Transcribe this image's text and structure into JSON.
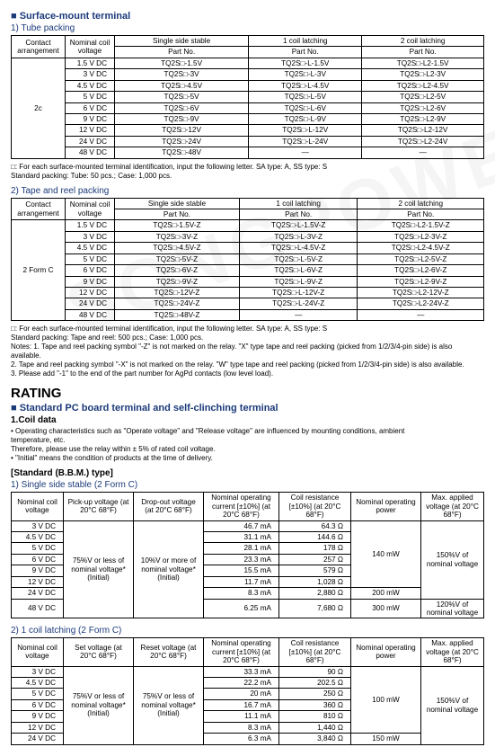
{
  "section1": {
    "title": "Surface-mount terminal",
    "sub1": "1) Tube packing",
    "headers": {
      "contact": "Contact\narrangement",
      "nominal": "Nominal coil\nvoltage",
      "single": "Single side stable",
      "c1": "1 coil latching",
      "c2": "2 coil latching",
      "partno": "Part No."
    },
    "contact": "2c",
    "rows": [
      {
        "v": "1.5 V DC",
        "a": "TQ2S□-1.5V",
        "b": "TQ2S□-L-1.5V",
        "c": "TQ2S□-L2-1.5V"
      },
      {
        "v": "3   V DC",
        "a": "TQ2S□-3V",
        "b": "TQ2S□-L-3V",
        "c": "TQ2S□-L2-3V"
      },
      {
        "v": "4.5 V DC",
        "a": "TQ2S□-4.5V",
        "b": "TQ2S□-L-4.5V",
        "c": "TQ2S□-L2-4.5V"
      },
      {
        "v": "5   V DC",
        "a": "TQ2S□-5V",
        "b": "TQ2S□-L-5V",
        "c": "TQ2S□-L2-5V"
      },
      {
        "v": "6   V DC",
        "a": "TQ2S□-6V",
        "b": "TQ2S□-L-6V",
        "c": "TQ2S□-L2-6V"
      },
      {
        "v": "9   V DC",
        "a": "TQ2S□-9V",
        "b": "TQ2S□-L-9V",
        "c": "TQ2S□-L2-9V"
      },
      {
        "v": "12  V DC",
        "a": "TQ2S□-12V",
        "b": "TQ2S□-L-12V",
        "c": "TQ2S□-L2-12V"
      },
      {
        "v": "24  V DC",
        "a": "TQ2S□-24V",
        "b": "TQ2S□-L-24V",
        "c": "TQ2S□-L2-24V"
      },
      {
        "v": "48  V DC",
        "a": "TQ2S□-48V",
        "b": "—",
        "c": "—"
      }
    ],
    "note": "□: For each surface-mounted terminal identification, input the following letter. SA type: A, SS type: S\nStandard packing: Tube: 50 pcs.; Case: 1,000 pcs."
  },
  "section2": {
    "sub": "2) Tape and reel packing",
    "contact": "2 Form C",
    "rows": [
      {
        "v": "1.5 V DC",
        "a": "TQ2S□-1.5V-Z",
        "b": "TQ2S□-L-1.5V-Z",
        "c": "TQ2S□-L2-1.5V-Z"
      },
      {
        "v": "3   V DC",
        "a": "TQ2S□-3V-Z",
        "b": "TQ2S□-L-3V-Z",
        "c": "TQ2S□-L2-3V-Z"
      },
      {
        "v": "4.5 V DC",
        "a": "TQ2S□-4.5V-Z",
        "b": "TQ2S□-L-4.5V-Z",
        "c": "TQ2S□-L2-4.5V-Z"
      },
      {
        "v": "5   V DC",
        "a": "TQ2S□-5V-Z",
        "b": "TQ2S□-L-5V-Z",
        "c": "TQ2S□-L2-5V-Z"
      },
      {
        "v": "6   V DC",
        "a": "TQ2S□-6V-Z",
        "b": "TQ2S□-L-6V-Z",
        "c": "TQ2S□-L2-6V-Z"
      },
      {
        "v": "9   V DC",
        "a": "TQ2S□-9V-Z",
        "b": "TQ2S□-L-9V-Z",
        "c": "TQ2S□-L2-9V-Z"
      },
      {
        "v": "12  V DC",
        "a": "TQ2S□-12V-Z",
        "b": "TQ2S□-L-12V-Z",
        "c": "TQ2S□-L2-12V-Z"
      },
      {
        "v": "24  V DC",
        "a": "TQ2S□-24V-Z",
        "b": "TQ2S□-L-24V-Z",
        "c": "TQ2S□-L2-24V-Z"
      },
      {
        "v": "48  V DC",
        "a": "TQ2S□-48V-Z",
        "b": "—",
        "c": "—"
      }
    ],
    "note": "□: For each surface-mounted terminal identification, input the following letter. SA type: A, SS type: S\nStandard packing: Tape and reel: 500 pcs.; Case: 1,000 pcs.\nNotes: 1. Tape and reel packing symbol \"-Z\" is not marked on the relay. \"X\" type tape and reel packing (picked from 1/2/3/4-pin side) is also available.\n           2. Tape and reel packing symbol \"-X\" is not marked on the relay. \"W\" type tape and reel packing (picked from 1/2/3/4-pin side) is also available.\n           3. Please add \"-1\" to the end of the part number for AgPd contacts (low level load)."
  },
  "rating": {
    "title": "RATING",
    "sec": "Standard PC board terminal and self-clinching terminal",
    "sub": "1.Coil data",
    "bullets": "• Operating characteristics such as \"Operate voltage\" and \"Release voltage\" are influenced by mounting conditions, ambient\n  temperature, etc.\n  Therefore, please use the relay within ± 5% of rated coil voltage.\n• \"Initial\" means the condition of products at the time of delivery.",
    "std": "[Standard (B.B.M.) type]",
    "t1head": "1) Single side stable (2 Form C)",
    "t1": {
      "headers": {
        "nv": "Nominal coil\nvoltage",
        "pu": "Pick-up voltage\n(at 20°C 68°F)",
        "do": "Drop-out voltage\n(at 20°C 68°F)",
        "noc": "Nominal operating\ncurrent\n[±10%] (at 20°C 68°F)",
        "cr": "Coil resistance\n[±10%] (at 20°C 68°F)",
        "nop": "Nominal operating\npower",
        "mav": "Max. applied voltage\n(at 20°C 68°F)"
      },
      "pu_text": "75%V or less of\nnominal voltage*\n(Initial)",
      "do_text": "10%V or more of\nnominal voltage*\n(Initial)",
      "mav_text1": "150%V of\nnominal voltage",
      "mav_text2": "120%V of\nnominal voltage",
      "rows": [
        {
          "v": "3   V DC",
          "cur": "46.7 mA",
          "res": "64.3 Ω"
        },
        {
          "v": "4.5 V DC",
          "cur": "31.1 mA",
          "res": "144.6 Ω"
        },
        {
          "v": "5   V DC",
          "cur": "28.1 mA",
          "res": "178   Ω"
        },
        {
          "v": "6   V DC",
          "cur": "23.3 mA",
          "res": "257   Ω"
        },
        {
          "v": "9   V DC",
          "cur": "15.5 mA",
          "res": "579   Ω"
        },
        {
          "v": "12  V DC",
          "cur": "11.7 mA",
          "res": "1,028   Ω"
        }
      ],
      "row24": {
        "v": "24  V DC",
        "cur": "8.3 mA",
        "res": "2,880   Ω",
        "pow": "200 mW"
      },
      "row48": {
        "v": "48  V DC",
        "cur": "6.25 mA",
        "res": "7,680   Ω",
        "pow": "300 mW"
      },
      "pow140": "140 mW"
    },
    "t2head": "2) 1 coil latching (2 Form C)",
    "t2": {
      "headers": {
        "nv": "Nominal coil\nvoltage",
        "set": "Set voltage\n(at 20°C 68°F)",
        "reset": "Reset voltage\n(at 20°C 68°F)",
        "noc": "Nominal operating\ncurrent\n[±10%] (at 20°C 68°F)",
        "cr": "Coil resistance\n[±10%] (at 20°C 68°F)",
        "nop": "Nominal operating\npower",
        "mav": "Max. applied voltage\n(at 20°C 68°F)"
      },
      "set_text": "75%V or less of\nnominal voltage*\n(Initial)",
      "reset_text": "75%V or less of\nnominal voltage*\n(Initial)",
      "mav_text": "150%V of\nnominal voltage",
      "rows": [
        {
          "v": "3   V DC",
          "cur": "33.3 mA",
          "res": "90   Ω"
        },
        {
          "v": "4.5 V DC",
          "cur": "22.2 mA",
          "res": "202.5 Ω"
        },
        {
          "v": "5   V DC",
          "cur": "20   mA",
          "res": "250   Ω"
        },
        {
          "v": "6   V DC",
          "cur": "16.7 mA",
          "res": "360   Ω"
        },
        {
          "v": "9   V DC",
          "cur": "11.1 mA",
          "res": "810   Ω"
        },
        {
          "v": "12  V DC",
          "cur": "8.3 mA",
          "res": "1,440   Ω"
        }
      ],
      "row24": {
        "v": "24  V DC",
        "cur": "6.3 mA",
        "res": "3,840   Ω",
        "pow": "150 mW"
      },
      "pow100": "100 mW"
    }
  }
}
